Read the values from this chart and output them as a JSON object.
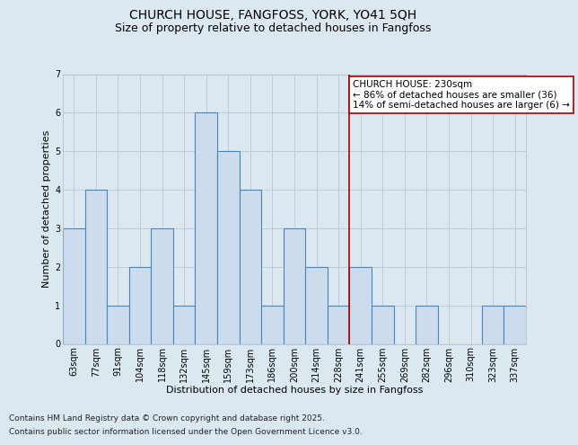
{
  "title1": "CHURCH HOUSE, FANGFOSS, YORK, YO41 5QH",
  "title2": "Size of property relative to detached houses in Fangfoss",
  "xlabel": "Distribution of detached houses by size in Fangfoss",
  "ylabel": "Number of detached properties",
  "categories": [
    "63sqm",
    "77sqm",
    "91sqm",
    "104sqm",
    "118sqm",
    "132sqm",
    "145sqm",
    "159sqm",
    "173sqm",
    "186sqm",
    "200sqm",
    "214sqm",
    "228sqm",
    "241sqm",
    "255sqm",
    "269sqm",
    "282sqm",
    "296sqm",
    "310sqm",
    "323sqm",
    "337sqm"
  ],
  "values": [
    3,
    4,
    1,
    2,
    3,
    1,
    6,
    5,
    4,
    1,
    3,
    2,
    1,
    2,
    1,
    0,
    1,
    0,
    0,
    1,
    1
  ],
  "bar_color": "#ccdcec",
  "bar_edge_color": "#4488bb",
  "bar_linewidth": 0.8,
  "grid_color": "#bbccdd",
  "background_color": "#dce8f0",
  "red_line_index": 12.5,
  "annotation_line_color": "#aa0000",
  "annotation_text_line1": "CHURCH HOUSE: 230sqm",
  "annotation_text_line2": "← 86% of detached houses are smaller (36)",
  "annotation_text_line3": "14% of semi-detached houses are larger (6) →",
  "annotation_box_color": "#ffffff",
  "annotation_box_edge": "#aa0000",
  "footnote1": "Contains HM Land Registry data © Crown copyright and database right 2025.",
  "footnote2": "Contains public sector information licensed under the Open Government Licence v3.0.",
  "ylim": [
    0,
    7
  ],
  "yticks": [
    0,
    1,
    2,
    3,
    4,
    5,
    6,
    7
  ],
  "title1_fontsize": 10,
  "title2_fontsize": 9,
  "axis_label_fontsize": 8,
  "tick_fontsize": 7,
  "annotation_fontsize": 7.5,
  "footnote_fontsize": 6.5
}
